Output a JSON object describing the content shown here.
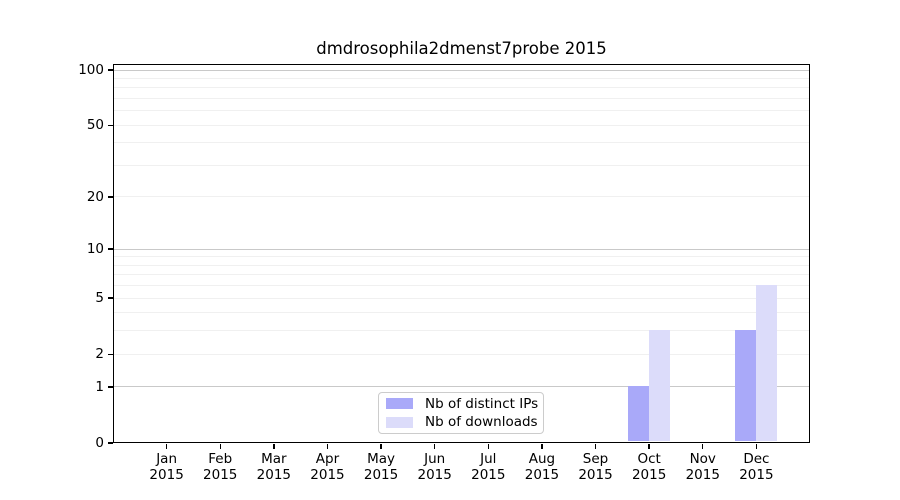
{
  "chart_data": {
    "type": "bar",
    "title": "dmdrosophila2dmenst7probe 2015",
    "year": "2015",
    "categories": [
      "Jan",
      "Feb",
      "Mar",
      "Apr",
      "May",
      "Jun",
      "Jul",
      "Aug",
      "Sep",
      "Oct",
      "Nov",
      "Dec"
    ],
    "series": [
      {
        "name": "Nb of distinct IPs",
        "color": "#a9a9f9",
        "values": [
          0,
          0,
          0,
          0,
          0,
          0,
          0,
          0,
          0,
          1,
          0,
          3
        ]
      },
      {
        "name": "Nb of downloads",
        "color": "#dcdcfa",
        "values": [
          0,
          0,
          0,
          0,
          0,
          0,
          0,
          0,
          0,
          3,
          0,
          6
        ]
      }
    ],
    "yscale": "log1p",
    "ylim": [
      0,
      110
    ],
    "yticks": [
      0,
      1,
      2,
      5,
      10,
      20,
      50,
      100
    ],
    "grid": {
      "major_values": [
        1,
        10,
        100
      ],
      "minor_values": [
        2,
        3,
        4,
        5,
        6,
        7,
        8,
        9,
        20,
        30,
        40,
        50,
        60,
        70,
        80,
        90
      ],
      "major_color": "#c9c9c9",
      "minor_color": "#f0f0f0"
    },
    "axis_color": "#000000",
    "text_color": "#000000",
    "legend_position": "inside-bottom-center"
  }
}
